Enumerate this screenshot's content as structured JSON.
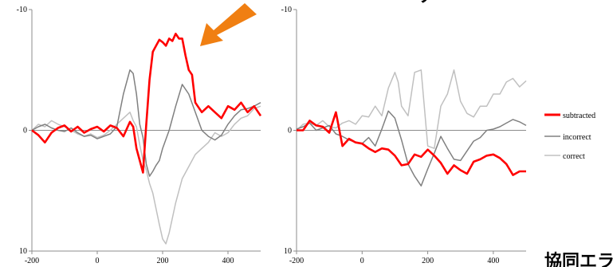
{
  "colors": {
    "subtracted": "#ff0000",
    "incorrect": "#808080",
    "correct": "#c0c0c0",
    "arrow": "#f07f12",
    "axis": "#8c8c8c"
  },
  "top_right_text": "サ",
  "caption": "協同エラ",
  "arrow_icon": "arrow-down-left-icon",
  "chart_data": [
    {
      "type": "line",
      "panel": "left",
      "xlim": [
        -200,
        500
      ],
      "ylim": [
        -10,
        10
      ],
      "y_inverted": true,
      "x_ticks": [
        "-200",
        "0",
        "200",
        "400"
      ],
      "x_tick_values": [
        -200,
        0,
        200,
        400
      ],
      "y_ticks": [
        "-10",
        "0",
        "10"
      ],
      "y_tick_values": [
        -10,
        0,
        10
      ],
      "series": [
        {
          "name": "subtracted",
          "x": [
            -200,
            -180,
            -160,
            -140,
            -120,
            -100,
            -80,
            -60,
            -40,
            -20,
            0,
            20,
            40,
            60,
            80,
            100,
            110,
            120,
            130,
            140,
            150,
            160,
            170,
            180,
            190,
            200,
            210,
            220,
            230,
            240,
            250,
            260,
            270,
            280,
            290,
            300,
            320,
            340,
            360,
            380,
            400,
            420,
            440,
            460,
            480,
            500
          ],
          "y": [
            0,
            0.4,
            1,
            0.2,
            -0.2,
            -0.4,
            0.1,
            -0.3,
            0.2,
            -0.1,
            -0.3,
            0.1,
            -0.4,
            -0.2,
            0.5,
            -0.7,
            -0.3,
            1.5,
            2.5,
            3.5,
            -0.5,
            -4.2,
            -6.5,
            -7,
            -7.5,
            -7.3,
            -7,
            -7.6,
            -7.4,
            -8,
            -7.6,
            -7.6,
            -6.2,
            -5,
            -4.6,
            -2.3,
            -1.5,
            -2,
            -1.5,
            -1,
            -2,
            -1.7,
            -2.3,
            -1.5,
            -2,
            -1.2
          ]
        },
        {
          "name": "incorrect",
          "x": [
            -200,
            -180,
            -160,
            -140,
            -120,
            -100,
            -80,
            -60,
            -40,
            -20,
            0,
            20,
            40,
            60,
            80,
            100,
            110,
            120,
            130,
            140,
            150,
            160,
            170,
            180,
            190,
            200,
            220,
            240,
            260,
            280,
            300,
            320,
            340,
            360,
            380,
            400,
            420,
            440,
            460,
            480,
            500
          ],
          "y": [
            0,
            -0.3,
            -0.5,
            -0.2,
            0,
            0.1,
            -0.2,
            0.2,
            0.5,
            0.4,
            0.7,
            0.5,
            0.3,
            -0.3,
            -3,
            -5,
            -4.7,
            -3,
            -0.5,
            0.6,
            2.8,
            3.8,
            3.4,
            2.9,
            2.5,
            1.5,
            0,
            -2,
            -3.8,
            -3,
            -1.5,
            0,
            0.5,
            0.8,
            0.4,
            -0.5,
            -1.2,
            -1.7,
            -1.8,
            -2,
            -2.3
          ]
        },
        {
          "name": "correct",
          "x": [
            -200,
            -180,
            -160,
            -140,
            -120,
            -100,
            -80,
            -60,
            -40,
            -20,
            0,
            20,
            40,
            60,
            80,
            100,
            110,
            120,
            130,
            140,
            150,
            160,
            170,
            180,
            190,
            200,
            210,
            220,
            240,
            260,
            280,
            300,
            320,
            340,
            360,
            380,
            400,
            420,
            440,
            460,
            480,
            500
          ],
          "y": [
            0,
            -0.5,
            -0.3,
            -0.8,
            -0.5,
            -0.3,
            0,
            0.3,
            0.5,
            0.3,
            0.6,
            0.4,
            0,
            -0.5,
            -1,
            -1.5,
            -0.8,
            -0.3,
            1.2,
            2.5,
            3.3,
            4.4,
            5.2,
            6.5,
            7.8,
            9,
            9.4,
            8.5,
            6,
            4,
            3,
            2,
            1.5,
            1,
            0.2,
            0.5,
            0.2,
            -0.5,
            -1,
            -1.2,
            -1.8,
            -2
          ]
        }
      ]
    },
    {
      "type": "line",
      "panel": "right",
      "xlim": [
        -200,
        500
      ],
      "ylim": [
        -10,
        10
      ],
      "y_inverted": true,
      "x_ticks": [
        "-200",
        "0",
        "200",
        "400"
      ],
      "x_tick_values": [
        -200,
        0,
        200,
        400
      ],
      "y_ticks": [
        "-10",
        "0",
        "10"
      ],
      "y_tick_values": [
        -10,
        0,
        10
      ],
      "series": [
        {
          "name": "subtracted",
          "x": [
            -200,
            -180,
            -160,
            -140,
            -120,
            -100,
            -80,
            -60,
            -40,
            -20,
            0,
            20,
            40,
            60,
            80,
            100,
            120,
            140,
            160,
            180,
            200,
            220,
            240,
            260,
            280,
            300,
            320,
            340,
            360,
            380,
            400,
            420,
            440,
            460,
            480,
            500
          ],
          "y": [
            0,
            0,
            -0.8,
            -0.4,
            -0.3,
            0.2,
            -1.5,
            1.3,
            0.7,
            1,
            1.1,
            1.5,
            1.8,
            1.5,
            1.6,
            2.1,
            2.9,
            2.8,
            2,
            2.2,
            1.6,
            2.1,
            2.7,
            3.6,
            2.9,
            3.3,
            3.6,
            2.6,
            2.4,
            2.1,
            2,
            2.3,
            2.8,
            3.7,
            3.4,
            3.4
          ]
        },
        {
          "name": "incorrect",
          "x": [
            -200,
            -180,
            -160,
            -140,
            -120,
            -100,
            -80,
            -60,
            -40,
            -20,
            0,
            20,
            40,
            60,
            80,
            100,
            120,
            140,
            160,
            180,
            200,
            220,
            240,
            260,
            280,
            300,
            320,
            340,
            360,
            380,
            400,
            420,
            440,
            460,
            480,
            500
          ],
          "y": [
            -0.1,
            -0.3,
            -0.6,
            0,
            -0.2,
            -0.4,
            0.3,
            0.5,
            0.8,
            1,
            1.1,
            0.6,
            1.3,
            -0.1,
            -1.6,
            -1,
            0.8,
            2.8,
            3.8,
            4.6,
            3.2,
            1.9,
            0.5,
            1.5,
            2.4,
            2.5,
            1.7,
            0.9,
            0.6,
            0,
            -0.1,
            -0.3,
            -0.6,
            -0.9,
            -0.7,
            -0.4
          ]
        },
        {
          "name": "correct",
          "x": [
            -200,
            -180,
            -160,
            -140,
            -120,
            -100,
            -80,
            -60,
            -40,
            -20,
            0,
            20,
            40,
            60,
            80,
            100,
            110,
            120,
            140,
            160,
            180,
            200,
            220,
            240,
            260,
            280,
            300,
            320,
            340,
            360,
            380,
            400,
            420,
            440,
            460,
            480,
            500
          ],
          "y": [
            0,
            -0.5,
            -0.6,
            -0.4,
            -0.8,
            -0.3,
            -0.2,
            -0.6,
            -0.8,
            -0.5,
            -1.2,
            -1.1,
            -2,
            -1.2,
            -3.5,
            -4.8,
            -4,
            -2,
            -1.2,
            -4.8,
            -5,
            1.3,
            1.5,
            -2,
            -3,
            -5,
            -2.4,
            -1.4,
            -1.1,
            -2,
            -2,
            -3,
            -3,
            -4,
            -4.3,
            -3.6,
            -4.1
          ]
        }
      ]
    }
  ]
}
